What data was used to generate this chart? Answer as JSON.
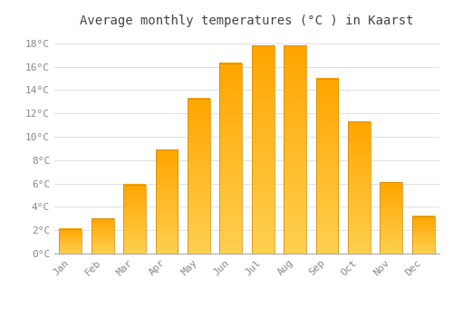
{
  "title": "Average monthly temperatures (°C ) in Kaarst",
  "months": [
    "Jan",
    "Feb",
    "Mar",
    "Apr",
    "May",
    "Jun",
    "Jul",
    "Aug",
    "Sep",
    "Oct",
    "Nov",
    "Dec"
  ],
  "values": [
    2.1,
    3.0,
    5.9,
    8.9,
    13.3,
    16.3,
    17.8,
    17.8,
    15.0,
    11.3,
    6.1,
    3.2
  ],
  "bar_color_bottom": "#FFD050",
  "bar_color_top": "#FFA500",
  "bar_edge_color": "#CC8800",
  "ylim": [
    0,
    19
  ],
  "yticks": [
    0,
    2,
    4,
    6,
    8,
    10,
    12,
    14,
    16,
    18
  ],
  "ytick_labels": [
    "0°C",
    "2°C",
    "4°C",
    "6°C",
    "8°C",
    "10°C",
    "12°C",
    "14°C",
    "16°C",
    "18°C"
  ],
  "background_color": "#FFFFFF",
  "grid_color": "#E0E0E0",
  "title_fontsize": 10,
  "tick_fontsize": 8,
  "tick_color": "#888888",
  "title_color": "#444444",
  "bar_width": 0.7,
  "figsize": [
    5.0,
    3.5
  ],
  "dpi": 100
}
